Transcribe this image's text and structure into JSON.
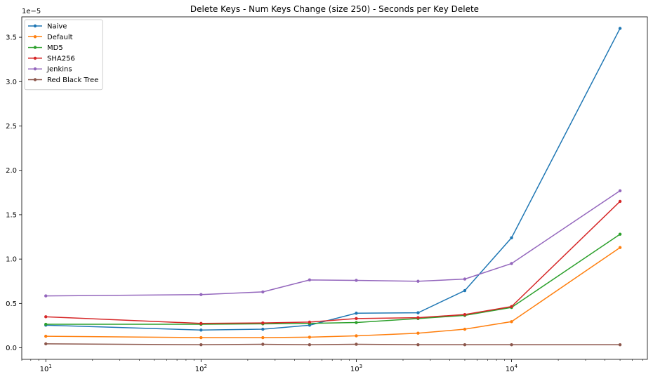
{
  "chart_data": {
    "type": "line",
    "title": "Delete Keys - Num Keys Change (size 250) - Seconds per Key Delete",
    "xlabel": "",
    "ylabel": "",
    "xscale": "log",
    "xlim": [
      7,
      75000
    ],
    "ylim": [
      -1.3e-06,
      3.73e-05
    ],
    "y_offset_label": "1e−5",
    "x_ticks": [
      {
        "value": 10,
        "label": "10",
        "exp": "1"
      },
      {
        "value": 100,
        "label": "10",
        "exp": "2"
      },
      {
        "value": 1000,
        "label": "10",
        "exp": "3"
      },
      {
        "value": 10000,
        "label": "10",
        "exp": "4"
      }
    ],
    "y_ticks": [
      {
        "value": 0.0,
        "label": "0.0"
      },
      {
        "value": 5e-06,
        "label": "0.5"
      },
      {
        "value": 1e-05,
        "label": "1.0"
      },
      {
        "value": 1.5e-05,
        "label": "1.5"
      },
      {
        "value": 2e-05,
        "label": "2.0"
      },
      {
        "value": 2.5e-05,
        "label": "2.5"
      },
      {
        "value": 3e-05,
        "label": "3.0"
      },
      {
        "value": 3.5e-05,
        "label": "3.5"
      }
    ],
    "x": [
      10,
      100,
      250,
      500,
      1000,
      2500,
      5000,
      10000,
      50000
    ],
    "series": [
      {
        "name": "Naive",
        "color": "#1f77b4",
        "values": [
          2.55e-06,
          2e-06,
          2.1e-06,
          2.55e-06,
          3.9e-06,
          3.95e-06,
          6.45e-06,
          1.24e-05,
          3.6e-05
        ]
      },
      {
        "name": "Default",
        "color": "#ff7f0e",
        "values": [
          1.3e-06,
          1.15e-06,
          1.15e-06,
          1.2e-06,
          1.35e-06,
          1.65e-06,
          2.1e-06,
          2.95e-06,
          1.13e-05
        ]
      },
      {
        "name": "MD5",
        "color": "#2ca02c",
        "values": [
          2.65e-06,
          2.65e-06,
          2.7e-06,
          2.75e-06,
          2.85e-06,
          3.3e-06,
          3.65e-06,
          4.55e-06,
          1.28e-05
        ]
      },
      {
        "name": "SHA256",
        "color": "#d62728",
        "values": [
          3.5e-06,
          2.75e-06,
          2.8e-06,
          2.9e-06,
          3.3e-06,
          3.4e-06,
          3.75e-06,
          4.65e-06,
          1.65e-05
        ]
      },
      {
        "name": "Jenkins",
        "color": "#9467bd",
        "values": [
          5.85e-06,
          6e-06,
          6.3e-06,
          7.65e-06,
          7.6e-06,
          7.5e-06,
          7.75e-06,
          9.5e-06,
          1.77e-05
        ]
      },
      {
        "name": "Red Black Tree",
        "color": "#8c564b",
        "values": [
          4.5e-07,
          3.5e-07,
          4e-07,
          3.5e-07,
          4e-07,
          3.5e-07,
          3.5e-07,
          3.5e-07,
          3.5e-07
        ]
      }
    ],
    "legend_position": "top-left",
    "grid": false
  }
}
